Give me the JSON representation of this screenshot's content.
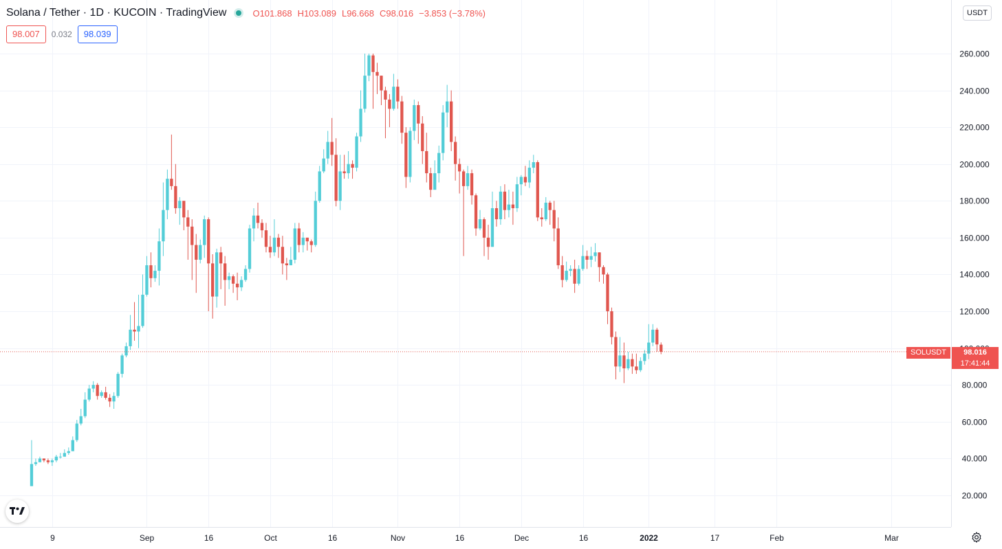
{
  "header": {
    "symbol": "Solana / Tether · 1D · KUCOIN · TradingView",
    "ohlc": {
      "o_label": "O",
      "o": "101.868",
      "h_label": "H",
      "h": "103.089",
      "l_label": "L",
      "l": "96.668",
      "c_label": "C",
      "c": "98.016",
      "change": "−3.853 (−3.78%)"
    }
  },
  "quotes": {
    "sell": "98.007",
    "spread": "0.032",
    "buy": "98.039"
  },
  "currency_button": "USDT",
  "last_price": {
    "symbol": "SOLUSDT",
    "price": "98.016",
    "countdown": "17:41:44"
  },
  "colors": {
    "up": "#53cdd7",
    "down": "#e0564e",
    "grid": "#f0f3fa",
    "axis_text": "#131722"
  },
  "icons": {
    "logo": "tradingview-logo-icon",
    "settings": "gear-icon",
    "live": "live-dot-icon"
  },
  "chart_data": {
    "type": "candlestick",
    "series_name": "SOLUSDT",
    "ylim": [
      0,
      280
    ],
    "yticks": [
      "20.000",
      "40.000",
      "60.000",
      "80.000",
      "100.000",
      "120.000",
      "140.000",
      "160.000",
      "180.000",
      "200.000",
      "220.000",
      "240.000",
      "260.000"
    ],
    "ytick_values": [
      20,
      40,
      60,
      80,
      100,
      120,
      140,
      160,
      180,
      200,
      220,
      240,
      260
    ],
    "xlim": [
      "2021-08-02",
      "2022-03-15"
    ],
    "xticks": [
      {
        "label": "9",
        "date": "2021-08-09",
        "bold": false
      },
      {
        "label": "Sep",
        "date": "2021-09-01",
        "bold": false
      },
      {
        "label": "16",
        "date": "2021-09-16",
        "bold": false
      },
      {
        "label": "Oct",
        "date": "2021-10-01",
        "bold": false
      },
      {
        "label": "16",
        "date": "2021-10-16",
        "bold": false
      },
      {
        "label": "Nov",
        "date": "2021-11-01",
        "bold": false
      },
      {
        "label": "16",
        "date": "2021-11-16",
        "bold": false
      },
      {
        "label": "Dec",
        "date": "2021-12-01",
        "bold": false
      },
      {
        "label": "16",
        "date": "2021-12-16",
        "bold": false
      },
      {
        "label": "2022",
        "date": "2022-01-01",
        "bold": true
      },
      {
        "label": "17",
        "date": "2022-01-17",
        "bold": false
      },
      {
        "label": "Feb",
        "date": "2022-02-01",
        "bold": false
      },
      {
        "label": "Mar",
        "date": "2022-03-01",
        "bold": false
      }
    ],
    "start_date": "2021-08-04",
    "candles": [
      [
        25,
        37,
        25,
        50
      ],
      [
        37,
        38,
        36,
        40
      ],
      [
        38,
        40,
        38,
        41
      ],
      [
        40,
        39,
        38,
        40
      ],
      [
        39,
        38,
        37,
        40
      ],
      [
        38,
        39,
        36,
        40
      ],
      [
        39,
        41,
        38,
        42
      ],
      [
        41,
        41,
        40,
        43
      ],
      [
        41,
        43,
        41,
        45
      ],
      [
        43,
        44,
        42,
        46
      ],
      [
        44,
        50,
        44,
        52
      ],
      [
        50,
        59,
        49,
        61
      ],
      [
        59,
        63,
        58,
        67
      ],
      [
        63,
        72,
        62,
        76
      ],
      [
        72,
        78,
        71,
        80
      ],
      [
        78,
        80,
        76,
        82
      ],
      [
        80,
        74,
        72,
        81
      ],
      [
        74,
        76,
        73,
        77
      ],
      [
        76,
        73,
        72,
        79
      ],
      [
        73,
        71,
        68,
        75
      ],
      [
        71,
        74,
        67,
        76
      ],
      [
        74,
        86,
        73,
        87
      ],
      [
        86,
        96,
        84,
        97
      ],
      [
        96,
        101,
        95,
        103
      ],
      [
        101,
        110,
        99,
        118
      ],
      [
        110,
        109,
        104,
        125
      ],
      [
        109,
        112,
        100,
        129
      ],
      [
        112,
        129,
        111,
        140
      ],
      [
        129,
        145,
        128,
        150
      ],
      [
        145,
        138,
        133,
        152
      ],
      [
        138,
        142,
        136,
        145
      ],
      [
        142,
        158,
        134,
        165
      ],
      [
        158,
        175,
        150,
        190
      ],
      [
        175,
        192,
        170,
        197
      ],
      [
        192,
        188,
        186,
        216
      ],
      [
        188,
        176,
        173,
        200
      ],
      [
        176,
        180,
        167,
        182
      ],
      [
        180,
        171,
        164,
        180
      ],
      [
        171,
        166,
        148,
        175
      ],
      [
        166,
        156,
        137,
        170
      ],
      [
        156,
        148,
        130,
        162
      ],
      [
        148,
        156,
        146,
        159
      ],
      [
        156,
        170,
        149,
        172
      ],
      [
        170,
        146,
        120,
        171
      ],
      [
        146,
        128,
        116,
        151
      ],
      [
        128,
        152,
        122,
        154
      ],
      [
        152,
        146,
        132,
        155
      ],
      [
        146,
        137,
        123,
        150
      ],
      [
        137,
        139,
        132,
        141
      ],
      [
        139,
        135,
        130,
        140
      ],
      [
        135,
        133,
        126,
        141
      ],
      [
        133,
        137,
        131,
        139
      ],
      [
        137,
        143,
        136,
        145
      ],
      [
        143,
        165,
        141,
        167
      ],
      [
        165,
        172,
        158,
        176
      ],
      [
        172,
        168,
        165,
        179
      ],
      [
        168,
        164,
        160,
        170
      ],
      [
        164,
        155,
        152,
        168
      ],
      [
        155,
        152,
        149,
        161
      ],
      [
        152,
        160,
        150,
        170
      ],
      [
        160,
        155,
        149,
        162
      ],
      [
        155,
        146,
        140,
        161
      ],
      [
        146,
        145,
        137,
        149
      ],
      [
        145,
        148,
        145,
        155
      ],
      [
        148,
        165,
        146,
        168
      ],
      [
        165,
        156,
        152,
        168
      ],
      [
        156,
        160,
        152,
        163
      ],
      [
        160,
        158,
        153,
        160
      ],
      [
        158,
        156,
        152,
        159
      ],
      [
        156,
        180,
        155,
        185
      ],
      [
        180,
        196,
        179,
        199
      ],
      [
        196,
        203,
        195,
        208
      ],
      [
        203,
        212,
        200,
        218
      ],
      [
        212,
        205,
        199,
        225
      ],
      [
        205,
        180,
        177,
        214
      ],
      [
        180,
        196,
        175,
        205
      ],
      [
        196,
        195,
        192,
        205
      ],
      [
        195,
        200,
        192,
        207
      ],
      [
        200,
        198,
        192,
        202
      ],
      [
        198,
        215,
        196,
        217
      ],
      [
        215,
        230,
        212,
        240
      ],
      [
        230,
        248,
        228,
        260
      ],
      [
        248,
        259,
        245,
        260
      ],
      [
        259,
        250,
        230,
        260
      ],
      [
        250,
        248,
        238,
        255
      ],
      [
        248,
        240,
        232,
        248
      ],
      [
        240,
        235,
        214,
        242
      ],
      [
        235,
        230,
        220,
        238
      ],
      [
        230,
        242,
        229,
        249
      ],
      [
        242,
        234,
        230,
        246
      ],
      [
        234,
        217,
        211,
        237
      ],
      [
        217,
        193,
        187,
        220
      ],
      [
        193,
        218,
        190,
        220
      ],
      [
        218,
        232,
        213,
        235
      ],
      [
        232,
        222,
        211,
        234
      ],
      [
        222,
        207,
        200,
        226
      ],
      [
        207,
        195,
        190,
        217
      ],
      [
        195,
        186,
        182,
        198
      ],
      [
        186,
        195,
        188,
        202
      ],
      [
        195,
        206,
        190,
        210
      ],
      [
        206,
        228,
        202,
        232
      ],
      [
        228,
        234,
        220,
        243
      ],
      [
        234,
        212,
        207,
        240
      ],
      [
        212,
        200,
        191,
        215
      ],
      [
        200,
        196,
        184,
        203
      ],
      [
        196,
        188,
        150,
        197
      ],
      [
        188,
        195,
        186,
        199
      ],
      [
        195,
        183,
        178,
        197
      ],
      [
        183,
        165,
        161,
        184
      ],
      [
        165,
        170,
        164,
        175
      ],
      [
        170,
        160,
        150,
        171
      ],
      [
        160,
        155,
        148,
        167
      ],
      [
        155,
        176,
        155,
        185
      ],
      [
        176,
        170,
        166,
        180
      ],
      [
        170,
        185,
        167,
        188
      ],
      [
        185,
        175,
        170,
        189
      ],
      [
        175,
        178,
        171,
        186
      ],
      [
        178,
        176,
        167,
        185
      ],
      [
        176,
        189,
        174,
        193
      ],
      [
        189,
        193,
        183,
        194
      ],
      [
        193,
        190,
        188,
        199
      ],
      [
        190,
        198,
        187,
        202
      ],
      [
        198,
        201,
        195,
        205
      ],
      [
        201,
        171,
        169,
        202
      ],
      [
        171,
        170,
        166,
        176
      ],
      [
        170,
        179,
        169,
        182
      ],
      [
        179,
        175,
        167,
        180
      ],
      [
        175,
        165,
        158,
        180
      ],
      [
        165,
        145,
        143,
        171
      ],
      [
        145,
        137,
        133,
        150
      ],
      [
        137,
        142,
        136,
        147
      ],
      [
        142,
        143,
        139,
        145
      ],
      [
        143,
        135,
        130,
        148
      ],
      [
        135,
        143,
        134,
        145
      ],
      [
        143,
        150,
        142,
        156
      ],
      [
        150,
        148,
        143,
        153
      ],
      [
        148,
        150,
        144,
        155
      ],
      [
        150,
        152,
        147,
        157
      ],
      [
        152,
        144,
        136,
        152
      ],
      [
        144,
        140,
        135,
        145
      ],
      [
        140,
        120,
        113,
        141
      ],
      [
        120,
        106,
        102,
        122
      ],
      [
        106,
        90,
        83,
        109
      ],
      [
        90,
        96,
        87,
        106
      ],
      [
        96,
        89,
        81,
        103
      ],
      [
        89,
        94,
        88,
        98
      ],
      [
        94,
        90,
        86,
        97
      ],
      [
        90,
        88,
        86,
        97
      ],
      [
        88,
        93,
        87,
        95
      ],
      [
        93,
        97,
        91,
        99
      ],
      [
        97,
        103,
        94,
        113
      ],
      [
        103,
        110,
        101,
        113
      ],
      [
        110,
        102,
        98,
        111
      ],
      [
        101.868,
        98.016,
        96.668,
        103.089
      ]
    ]
  }
}
